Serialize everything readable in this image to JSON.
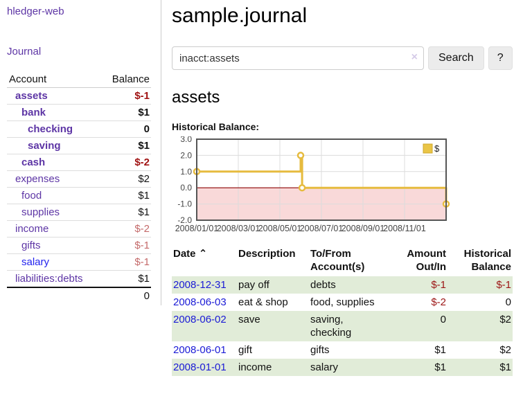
{
  "app": {
    "brand": "hledger-web",
    "nav_journal": "Journal"
  },
  "sidebar": {
    "header": {
      "account": "Account",
      "balance": "Balance"
    },
    "accounts": [
      {
        "name": "assets",
        "balance": "$-1"
      },
      {
        "name": "bank",
        "balance": "$1"
      },
      {
        "name": "checking",
        "balance": "0"
      },
      {
        "name": "saving",
        "balance": "$1"
      },
      {
        "name": "cash",
        "balance": "$-2"
      },
      {
        "name": "expenses",
        "balance": "$2"
      },
      {
        "name": "food",
        "balance": "$1"
      },
      {
        "name": "supplies",
        "balance": "$1"
      },
      {
        "name": "income",
        "balance": "$-2"
      },
      {
        "name": "gifts",
        "balance": "$-1"
      },
      {
        "name": "salary",
        "balance": "$-1"
      },
      {
        "name": "liabilities:debts",
        "balance": "$1"
      }
    ],
    "total": "0"
  },
  "main": {
    "title": "sample.journal",
    "search": {
      "value": "inacct:assets",
      "clear_icon": "×",
      "button": "Search",
      "help": "?"
    },
    "account_title": "assets",
    "chart_label": "Historical Balance:"
  },
  "chart_data": {
    "type": "line",
    "title": "Historical Balance",
    "step": true,
    "xlim_months": [
      0,
      12
    ],
    "ylim": [
      -2.0,
      3.0
    ],
    "grid": true,
    "legend": {
      "label": "$",
      "position": "top-right"
    },
    "colors": {
      "line": "#e6bb3e",
      "marker_fill": "#ffffff",
      "legend_fill": "#eac546",
      "legend_border": "#cfa82e",
      "negative_region": "#f9d9d9",
      "zero_line": "#8b0000",
      "gridline": "#dcdcdc",
      "border": "#555555",
      "tick_text": "#444444"
    },
    "series": [
      {
        "name": "$",
        "points": [
          {
            "date": "2008-01-01",
            "x_months": 0,
            "value": 1
          },
          {
            "date": "2008-06-01",
            "x_months": 5.0,
            "value": 2
          },
          {
            "date": "2008-06-03",
            "x_months": 5.07,
            "value": 0
          },
          {
            "date": "2008-12-31",
            "x_months": 12,
            "value": -1
          }
        ]
      }
    ],
    "x_ticks": [
      {
        "m": 0,
        "label": "2008/01/01"
      },
      {
        "m": 2,
        "label": "2008/03/01"
      },
      {
        "m": 4,
        "label": "2008/05/01"
      },
      {
        "m": 6,
        "label": "2008/07/01"
      },
      {
        "m": 8,
        "label": "2008/09/01"
      },
      {
        "m": 10,
        "label": "2008/11/01"
      }
    ],
    "y_ticks": [
      {
        "v": 3,
        "label": "3.0"
      },
      {
        "v": 2,
        "label": "2.0"
      },
      {
        "v": 1,
        "label": "1.0"
      },
      {
        "v": 0,
        "label": "0.0"
      },
      {
        "v": -1,
        "label": "-1.0"
      },
      {
        "v": -2,
        "label": "-2.0"
      }
    ]
  },
  "table": {
    "sort_icon": "⌃",
    "headers": [
      "Date",
      "Description",
      "To/From Account(s)",
      "Amount Out/In",
      "Historical Balance"
    ],
    "rows": [
      {
        "date": "2008-12-31",
        "description": "pay off",
        "accounts": "debts",
        "amount": "$-1",
        "balance": "$-1"
      },
      {
        "date": "2008-06-03",
        "description": "eat & shop",
        "accounts": "food, supplies",
        "amount": "$-2",
        "balance": "0"
      },
      {
        "date": "2008-06-02",
        "description": "save",
        "accounts": "saving, checking",
        "amount": "0",
        "balance": "$2"
      },
      {
        "date": "2008-06-01",
        "description": "gift",
        "accounts": "gifts",
        "amount": "$1",
        "balance": "$2"
      },
      {
        "date": "2008-01-01",
        "description": "income",
        "accounts": "salary",
        "amount": "$1",
        "balance": "$1"
      }
    ]
  }
}
